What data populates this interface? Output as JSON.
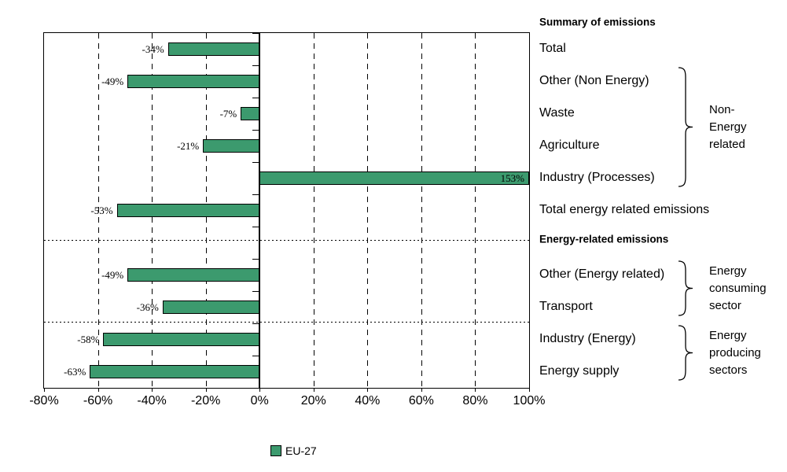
{
  "chart_data": {
    "type": "bar",
    "orientation": "horizontal",
    "title": "",
    "xlabel": "",
    "ylabel": "",
    "bar_color": "#3C9A6E",
    "x_axis": {
      "min": -80,
      "max": 100,
      "ticks": [
        {
          "value": -80,
          "label": "-80%"
        },
        {
          "value": -60,
          "label": "-60%"
        },
        {
          "value": -40,
          "label": "-40%"
        },
        {
          "value": -20,
          "label": "-20%"
        },
        {
          "value": 0,
          "label": "0%"
        },
        {
          "value": 20,
          "label": "20%"
        },
        {
          "value": 40,
          "label": "40%"
        },
        {
          "value": 60,
          "label": "60%"
        },
        {
          "value": 80,
          "label": "80%"
        },
        {
          "value": 100,
          "label": "100%"
        }
      ]
    },
    "rows": [
      {
        "label": "Total",
        "value": -34,
        "display": "-34%",
        "slot": 0
      },
      {
        "label": "Other (Non Energy)",
        "value": -49,
        "display": "-49%",
        "slot": 1
      },
      {
        "label": "Waste",
        "value": -7,
        "display": "-7%",
        "slot": 2
      },
      {
        "label": "Agriculture",
        "value": -21,
        "display": "-21%",
        "slot": 3
      },
      {
        "label": "Industry (Processes)",
        "value": 153,
        "display": "153%",
        "slot": 4
      },
      {
        "label": "Total energy related emissions",
        "value": -53,
        "display": "-53%",
        "slot": 5
      },
      {
        "label": "Other (Energy related)",
        "value": -49,
        "display": "-49%",
        "slot": 7
      },
      {
        "label": "Transport",
        "value": -36,
        "display": "-36%",
        "slot": 8
      },
      {
        "label": "Industry (Energy)",
        "value": -58,
        "display": "-58%",
        "slot": 9
      },
      {
        "label": "Energy supply",
        "value": -63,
        "display": "-63%",
        "slot": 10
      }
    ],
    "section_headings": [
      {
        "text": "Summary of emissions",
        "position": "above-plot"
      },
      {
        "text": "Energy-related emissions",
        "slot": 6
      }
    ],
    "group_brackets": [
      {
        "lines": [
          "Non-",
          "Energy",
          "related"
        ],
        "from_slot": 1,
        "to_slot": 4
      },
      {
        "lines": [
          "Energy",
          "consuming",
          "sector"
        ],
        "from_slot": 7,
        "to_slot": 8
      },
      {
        "lines": [
          "Energy",
          "producing",
          "sectors"
        ],
        "from_slot": 9,
        "to_slot": 10
      }
    ],
    "legend": {
      "label": "EU-27"
    }
  }
}
